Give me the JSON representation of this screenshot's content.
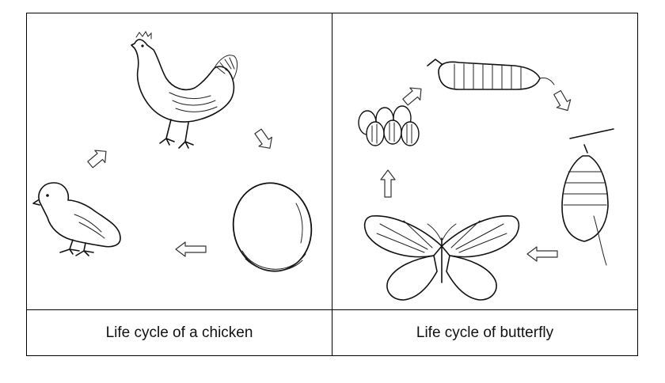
{
  "panels": [
    {
      "caption": "Life cycle of a chicken"
    },
    {
      "caption": "Life cycle of butterfly"
    }
  ],
  "icons": [
    "hen-icon",
    "egg-icon",
    "chick-icon",
    "caterpillar-icon",
    "chrysalis-icon",
    "butterfly-icon",
    "eggs-cluster-icon",
    "cycle-arrow-icon"
  ]
}
